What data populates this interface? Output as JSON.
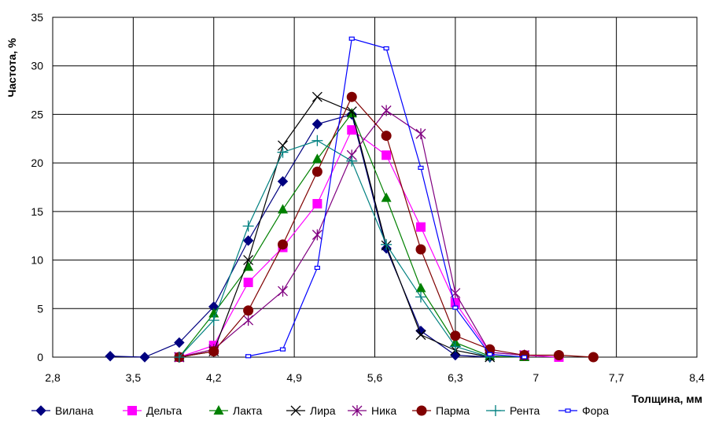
{
  "chart_data": {
    "type": "line",
    "title": "",
    "xlabel": "Толщина, мм",
    "ylabel": "Частота, %",
    "xlim": [
      2.8,
      8.4
    ],
    "ylim": [
      0,
      35
    ],
    "grid": true,
    "legend_position": "bottom",
    "x_ticks": [
      "2,8",
      "3,5",
      "4,2",
      "4,9",
      "5,6",
      "6,3",
      "7",
      "7,7",
      "8,4"
    ],
    "y_ticks": [
      "0",
      "5",
      "10",
      "15",
      "20",
      "25",
      "30",
      "35"
    ],
    "series": [
      {
        "name": "Вилана",
        "color": "#000080",
        "marker": "diamond",
        "x": [
          3.3,
          3.6,
          3.9,
          4.2,
          4.5,
          4.8,
          5.1,
          5.4,
          5.7,
          6.0,
          6.3,
          6.6
        ],
        "y": [
          0.1,
          0,
          1.5,
          5.2,
          12,
          18.1,
          24,
          25,
          11.2,
          2.7,
          0.2,
          0
        ]
      },
      {
        "name": "Дельта",
        "color": "#ff00ff",
        "marker": "square",
        "x": [
          3.9,
          4.2,
          4.5,
          4.8,
          5.1,
          5.4,
          5.7,
          6.0,
          6.3,
          6.6,
          6.9,
          7.2
        ],
        "y": [
          0,
          1.2,
          7.7,
          11.3,
          15.8,
          23.4,
          20.8,
          13.4,
          5.6,
          0.5,
          0.2,
          0
        ]
      },
      {
        "name": "Лакта",
        "color": "#008000",
        "marker": "triangle",
        "x": [
          3.9,
          4.2,
          4.5,
          4.8,
          5.1,
          5.4,
          5.7,
          6.0,
          6.3,
          6.6,
          6.9
        ],
        "y": [
          0,
          4.5,
          9.3,
          15.2,
          20.4,
          25.1,
          16.4,
          7.1,
          1.5,
          0.1,
          0
        ]
      },
      {
        "name": "Лира",
        "color": "#000000",
        "marker": "x",
        "x": [
          3.9,
          4.2,
          4.5,
          4.8,
          5.1,
          5.4,
          5.7,
          6.0,
          6.3,
          6.6
        ],
        "y": [
          0,
          0.6,
          10,
          21.8,
          26.8,
          25.3,
          11.5,
          2.3,
          0.7,
          0
        ]
      },
      {
        "name": "Ника",
        "color": "#800080",
        "marker": "star",
        "x": [
          3.9,
          4.2,
          4.5,
          4.8,
          5.1,
          5.4,
          5.7,
          6.0,
          6.3,
          6.6,
          6.9
        ],
        "y": [
          0,
          0.8,
          3.8,
          6.8,
          12.6,
          20.8,
          25.4,
          23,
          6.6,
          0.5,
          0.2
        ]
      },
      {
        "name": "Парма",
        "color": "#800000",
        "marker": "circle",
        "x": [
          3.9,
          4.2,
          4.5,
          4.8,
          5.1,
          5.4,
          5.7,
          6.0,
          6.3,
          6.6,
          6.9,
          7.2,
          7.5
        ],
        "y": [
          0,
          0.6,
          4.8,
          11.6,
          19.1,
          26.8,
          22.8,
          11.1,
          2.2,
          0.8,
          0.2,
          0.2,
          0
        ]
      },
      {
        "name": "Рента",
        "color": "#008080",
        "marker": "plus",
        "x": [
          3.9,
          4.2,
          4.5,
          4.8,
          5.1,
          5.4,
          5.7,
          6.0,
          6.3,
          6.6
        ],
        "y": [
          0,
          3.8,
          13.5,
          21.1,
          22.3,
          20.2,
          11.6,
          6.2,
          1.1,
          0
        ]
      },
      {
        "name": "Фора",
        "color": "#0000ff",
        "marker": "smallsquare",
        "x": [
          4.5,
          4.8,
          5.1,
          5.4,
          5.7,
          6.0,
          6.3,
          6.6,
          6.9
        ],
        "y": [
          0.1,
          0.8,
          9.2,
          32.8,
          31.8,
          19.5,
          5.1,
          0.3,
          0
        ]
      }
    ]
  }
}
